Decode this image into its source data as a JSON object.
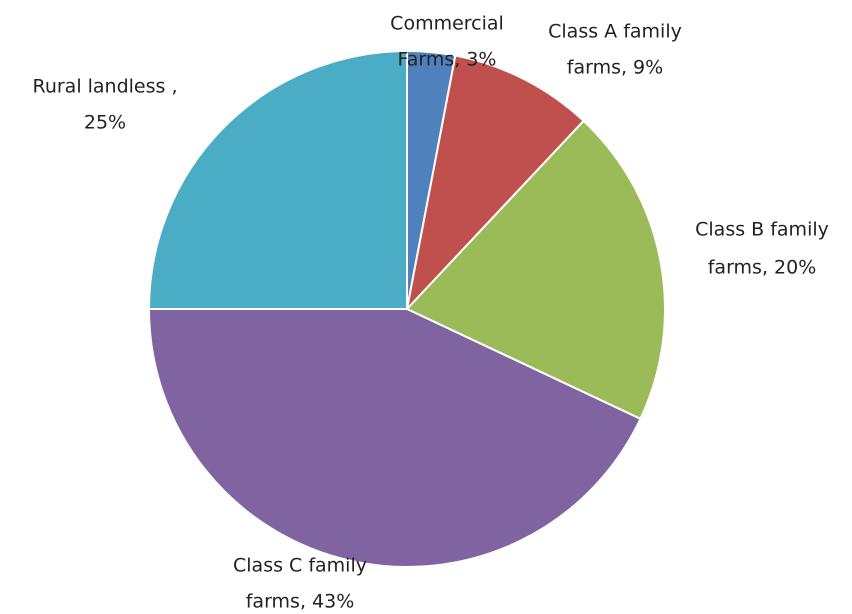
{
  "chart_data": {
    "type": "pie",
    "values": [
      3,
      9,
      20,
      43,
      25
    ],
    "value_labels": [
      [
        "Commercial",
        "Farms, 3%"
      ],
      [
        "Class A family",
        "farms, 9%"
      ],
      [
        "Class B family",
        "farms, 20%"
      ],
      [
        "Class C family",
        "farms, 43%"
      ],
      [
        "Rural landless ,",
        "25%"
      ]
    ],
    "colors": [
      "#4f81bd",
      "#c0504d",
      "#9bbb59",
      "#8064a2",
      "#4bacc6"
    ]
  }
}
